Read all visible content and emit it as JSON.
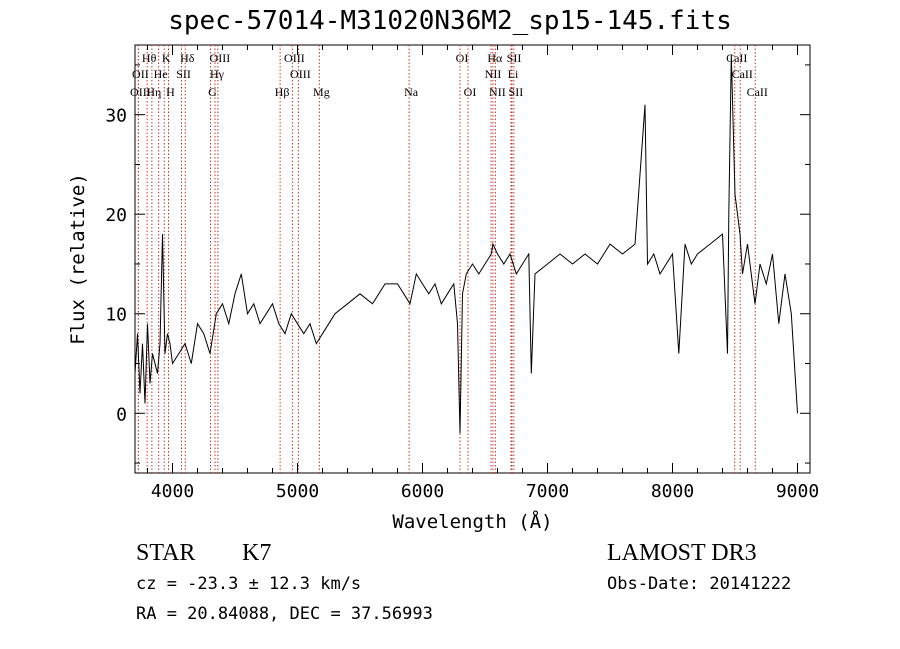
{
  "chart_data": {
    "type": "line",
    "title": "spec-57014-M31020N36M2_sp15-145.fits",
    "xlabel": "Wavelength (Å)",
    "ylabel": "Flux (relative)",
    "xlim": [
      3700,
      9100
    ],
    "ylim": [
      -6,
      37
    ],
    "xticks": [
      4000,
      5000,
      6000,
      7000,
      8000,
      9000
    ],
    "yticks": [
      0,
      10,
      20,
      30
    ],
    "series": [
      {
        "name": "flux",
        "x": [
          3700,
          3720,
          3740,
          3760,
          3780,
          3800,
          3820,
          3840,
          3860,
          3880,
          3900,
          3920,
          3940,
          3960,
          3980,
          4000,
          4050,
          4100,
          4150,
          4200,
          4250,
          4300,
          4350,
          4400,
          4450,
          4500,
          4550,
          4600,
          4650,
          4700,
          4750,
          4800,
          4850,
          4900,
          4950,
          5000,
          5050,
          5100,
          5150,
          5200,
          5250,
          5300,
          5400,
          5500,
          5600,
          5700,
          5800,
          5850,
          5900,
          5950,
          6000,
          6050,
          6100,
          6150,
          6200,
          6250,
          6280,
          6300,
          6320,
          6350,
          6400,
          6450,
          6500,
          6550,
          6563,
          6600,
          6650,
          6700,
          6750,
          6800,
          6850,
          6870,
          6900,
          7000,
          7100,
          7200,
          7300,
          7400,
          7500,
          7600,
          7700,
          7780,
          7800,
          7850,
          7900,
          8000,
          8050,
          8100,
          8150,
          8200,
          8300,
          8400,
          8440,
          8450,
          8470,
          8500,
          8540,
          8560,
          8600,
          8660,
          8700,
          8750,
          8800,
          8850,
          8900,
          8950,
          9000
        ],
        "y": [
          4,
          8,
          2,
          7,
          1,
          9,
          3,
          6,
          5,
          4,
          7,
          18,
          6,
          8,
          7,
          5,
          6,
          7,
          5,
          9,
          8,
          6,
          10,
          11,
          9,
          12,
          14,
          10,
          11,
          9,
          10,
          11,
          9,
          8,
          10,
          9,
          8,
          9,
          7,
          8,
          9,
          10,
          11,
          12,
          11,
          13,
          13,
          12,
          11,
          14,
          13,
          12,
          13,
          11,
          12,
          13,
          9,
          -2,
          12,
          14,
          15,
          14,
          15,
          16,
          17,
          16,
          15,
          16,
          14,
          15,
          16,
          4,
          14,
          15,
          16,
          15,
          16,
          15,
          17,
          16,
          17,
          31,
          15,
          16,
          14,
          16,
          6,
          17,
          15,
          16,
          17,
          18,
          6,
          20,
          36,
          22,
          18,
          14,
          17,
          11,
          15,
          13,
          16,
          9,
          14,
          10,
          0
        ]
      }
    ],
    "lines": [
      {
        "label": "Hθ",
        "w": 3797,
        "row": 0
      },
      {
        "label": "K",
        "w": 3934,
        "row": 0
      },
      {
        "label": "Hδ",
        "w": 4102,
        "row": 0
      },
      {
        "label": "OIII",
        "w": 4363,
        "row": 0
      },
      {
        "label": "OIII",
        "w": 4959,
        "row": 0
      },
      {
        "label": "OI",
        "w": 6300,
        "row": 0
      },
      {
        "label": "Hα",
        "w": 6563,
        "row": 0
      },
      {
        "label": "SII",
        "w": 6716,
        "row": 0
      },
      {
        "label": "CaII",
        "w": 8498,
        "row": 0
      },
      {
        "label": "OII",
        "w": 3727,
        "row": 1
      },
      {
        "label": "He",
        "w": 3889,
        "row": 1
      },
      {
        "label": "SII",
        "w": 4072,
        "row": 1
      },
      {
        "label": "Hγ",
        "w": 4340,
        "row": 1
      },
      {
        "label": "OIII",
        "w": 5007,
        "row": 1
      },
      {
        "label": "NII",
        "w": 6548,
        "row": 1
      },
      {
        "label": "Li",
        "w": 6708,
        "row": 1
      },
      {
        "label": "CaII",
        "w": 8542,
        "row": 1
      },
      {
        "label": "OIII",
        "w": 3727,
        "row": 2
      },
      {
        "label": "Hη",
        "w": 3835,
        "row": 2
      },
      {
        "label": "H",
        "w": 3968,
        "row": 2
      },
      {
        "label": "G",
        "w": 4304,
        "row": 2
      },
      {
        "label": "Hβ",
        "w": 4861,
        "row": 2
      },
      {
        "label": "Mg",
        "w": 5175,
        "row": 2
      },
      {
        "label": "Na",
        "w": 5893,
        "row": 2
      },
      {
        "label": "OI",
        "w": 6364,
        "row": 2
      },
      {
        "label": "NII",
        "w": 6583,
        "row": 2
      },
      {
        "label": "SII",
        "w": 6731,
        "row": 2
      },
      {
        "label": "CaII",
        "w": 8662,
        "row": 2
      }
    ]
  },
  "info": {
    "class_label": "STAR",
    "subclass": "K7",
    "survey": "LAMOST DR3",
    "cz": "cz = -23.3 ± 12.3 km/s",
    "obs_date": "Obs-Date: 20141222",
    "radec": "RA =  20.84088, DEC =  37.56993"
  }
}
